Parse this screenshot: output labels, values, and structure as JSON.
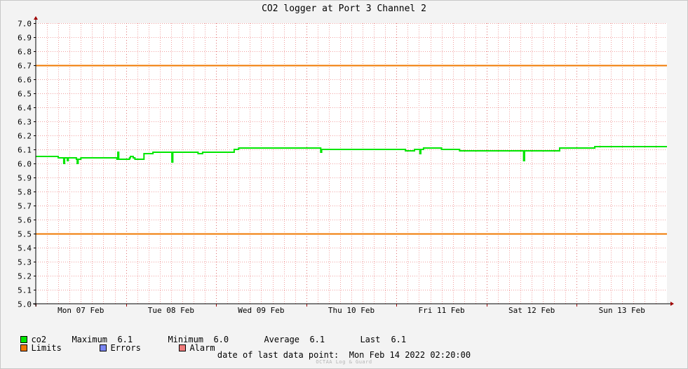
{
  "chart_data": {
    "type": "line",
    "title": "CO2 logger at Port 3 Channel 2",
    "ylim": [
      5.0,
      7.0
    ],
    "yticks": [
      "7.0",
      "6.9",
      "6.8",
      "6.7",
      "6.6",
      "6.5",
      "6.4",
      "6.3",
      "6.2",
      "6.1",
      "6.0",
      "5.9",
      "5.8",
      "5.7",
      "5.6",
      "5.5",
      "5.4",
      "5.3",
      "5.2",
      "5.1",
      "5.0"
    ],
    "x_range_days": [
      0,
      7.0
    ],
    "xtick_labels": [
      "Mon 07 Feb",
      "Tue 08 Feb",
      "Wed 09 Feb",
      "Thu 10 Feb",
      "Fri 11 Feb",
      "Sat 12 Feb",
      "Sun 13 Feb"
    ],
    "grid": true,
    "limits": {
      "upper": 6.7,
      "lower": 5.5,
      "color": "#f07800"
    },
    "series": [
      {
        "name": "co2",
        "color": "#00e600",
        "x": [
          0.0,
          0.25,
          0.3,
          0.31,
          0.32,
          0.34,
          0.35,
          0.36,
          0.38,
          0.45,
          0.46,
          0.47,
          0.5,
          0.9,
          0.91,
          0.92,
          0.94,
          1.04,
          1.05,
          1.06,
          1.08,
          1.1,
          1.15,
          1.2,
          1.3,
          1.32,
          1.45,
          1.5,
          1.51,
          1.52,
          1.6,
          1.75,
          1.8,
          1.85,
          2.1,
          2.2,
          2.25,
          2.5,
          2.7,
          3.0,
          3.15,
          3.16,
          3.17,
          3.2,
          3.4,
          3.7,
          4.0,
          4.1,
          4.2,
          4.25,
          4.26,
          4.27,
          4.3,
          4.5,
          4.7,
          5.0,
          5.1,
          5.4,
          5.41,
          5.42,
          5.44,
          5.6,
          5.8,
          5.81,
          6.0,
          6.2,
          6.3,
          6.6,
          6.8,
          6.9,
          7.0
        ],
        "y": [
          6.05,
          6.04,
          6.04,
          6.0,
          6.04,
          6.04,
          6.02,
          6.04,
          6.04,
          6.03,
          6.0,
          6.03,
          6.04,
          6.03,
          6.08,
          6.03,
          6.03,
          6.04,
          6.05,
          6.05,
          6.04,
          6.03,
          6.03,
          6.07,
          6.08,
          6.08,
          6.08,
          6.08,
          6.01,
          6.08,
          6.08,
          6.08,
          6.07,
          6.08,
          6.08,
          6.1,
          6.11,
          6.11,
          6.11,
          6.11,
          6.11,
          6.08,
          6.1,
          6.1,
          6.1,
          6.1,
          6.1,
          6.09,
          6.1,
          6.1,
          6.07,
          6.1,
          6.11,
          6.1,
          6.09,
          6.09,
          6.09,
          6.09,
          6.02,
          6.09,
          6.09,
          6.09,
          6.09,
          6.11,
          6.11,
          6.12,
          6.12,
          6.12,
          6.12,
          6.12,
          6.12
        ]
      }
    ]
  },
  "legend": {
    "co2": {
      "name": "co2",
      "max_label": "Maximum",
      "max_value": "6.1",
      "min_label": "Minimum",
      "min_value": "6.0",
      "avg_label": "Average",
      "avg_value": "6.1",
      "last_label": "Last",
      "last_value": "6.1",
      "color": "#00e600"
    },
    "limits_label": "Limits",
    "limits_color": "#f07800",
    "errors_label": "Errors",
    "errors_color": "#7a86f2",
    "alarm_label": "Alarm",
    "alarm_color": "#f07a7a"
  },
  "footer": {
    "last_point_label": "date of last data point:",
    "last_point_value": "Mon Feb 14 2022 02:20:00"
  },
  "watermark": "OCTAA Log & Guard"
}
